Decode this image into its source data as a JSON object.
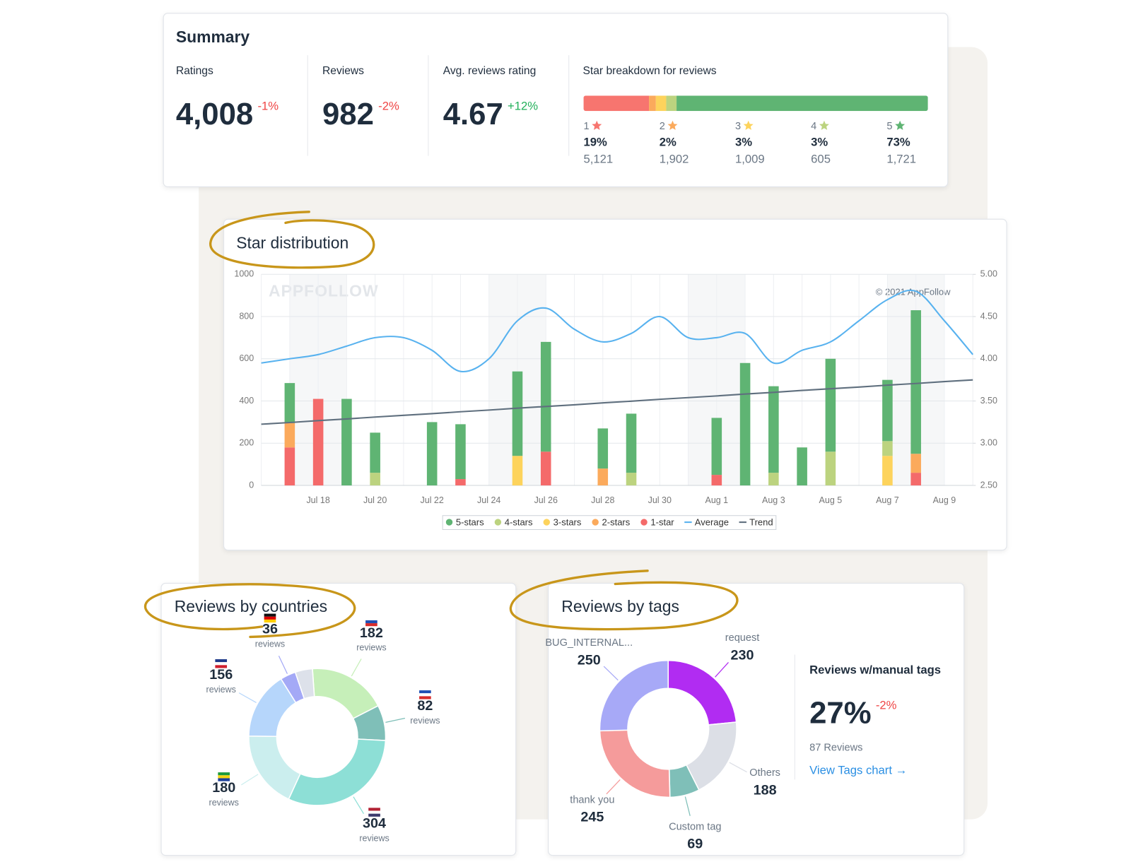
{
  "summary": {
    "title": "Summary",
    "metrics": [
      {
        "label": "Ratings",
        "value": "4,008",
        "change": "-1%"
      },
      {
        "label": "Reviews",
        "value": "982",
        "change": "-2%"
      },
      {
        "label": "Avg. reviews rating",
        "value": "4.67",
        "change": "+12%"
      }
    ],
    "star_breakdown": {
      "title": "Star breakdown for reviews",
      "levels": [
        "1",
        "2",
        "3",
        "4",
        "5"
      ],
      "colors": [
        "#f7756f",
        "#fbaa5c",
        "#fdd35c",
        "#bcd37f",
        "#5fb473"
      ],
      "values": [
        19,
        2,
        3,
        3,
        73
      ],
      "value_labels": [
        "19%",
        "2%",
        "3%",
        "3%",
        "73%"
      ],
      "counts": [
        "5,121",
        "1,902",
        "1,009",
        "605",
        "1,721"
      ]
    }
  },
  "chart_data": [
    {
      "type": "bar",
      "title": "Star distribution",
      "watermark": "APPFOLLOW",
      "copyright": "© 2021 AppFollow",
      "categories": [
        null,
        null,
        "Jul 18",
        null,
        "Jul 20",
        null,
        "Jul 22",
        null,
        "Jul 24",
        null,
        "Jul 26",
        null,
        "Jul 28",
        null,
        "Jul 30",
        null,
        "Aug 1",
        null,
        "Aug 3",
        null,
        "Aug 5",
        null,
        "Aug 7",
        null,
        "Aug 9",
        null
      ],
      "series": [
        {
          "name": "5-stars",
          "type": "bar",
          "color": "#5fb473",
          "values": [
            0,
            190,
            0,
            410,
            190,
            0,
            300,
            260,
            0,
            400,
            520,
            0,
            190,
            280,
            0,
            0,
            270,
            580,
            410,
            180,
            440,
            0,
            290,
            680,
            0,
            0
          ]
        },
        {
          "name": "4-stars",
          "type": "bar",
          "color": "#bcd37f",
          "values": [
            0,
            0,
            0,
            0,
            60,
            0,
            0,
            0,
            0,
            0,
            0,
            0,
            0,
            60,
            0,
            0,
            0,
            0,
            60,
            0,
            160,
            0,
            70,
            0,
            0,
            0
          ]
        },
        {
          "name": "3-stars",
          "type": "bar",
          "color": "#fdd35c",
          "values": [
            0,
            0,
            0,
            0,
            0,
            0,
            0,
            0,
            0,
            140,
            0,
            0,
            0,
            0,
            0,
            0,
            0,
            0,
            0,
            0,
            0,
            0,
            140,
            0,
            0,
            0
          ]
        },
        {
          "name": "2-stars",
          "type": "bar",
          "color": "#fbaa5c",
          "values": [
            0,
            115,
            0,
            0,
            0,
            0,
            0,
            0,
            0,
            0,
            0,
            0,
            80,
            0,
            0,
            0,
            0,
            0,
            0,
            0,
            0,
            0,
            0,
            90,
            0,
            0
          ]
        },
        {
          "name": "1-star",
          "type": "bar",
          "color": "#f46a6a",
          "values": [
            0,
            180,
            410,
            0,
            0,
            0,
            0,
            30,
            0,
            0,
            160,
            0,
            0,
            0,
            0,
            0,
            50,
            0,
            0,
            0,
            0,
            0,
            0,
            60,
            0,
            0
          ]
        },
        {
          "name": "Average",
          "type": "line",
          "axis": "y2",
          "color": "#58b2ef",
          "values": [
            3.95,
            4.0,
            4.05,
            4.15,
            4.25,
            4.25,
            4.1,
            3.85,
            4.0,
            4.45,
            4.6,
            4.35,
            4.2,
            4.3,
            4.5,
            4.25,
            4.25,
            4.3,
            3.95,
            4.1,
            4.2,
            4.45,
            4.7,
            4.8,
            4.45,
            4.05
          ]
        },
        {
          "name": "Trend",
          "type": "line",
          "color": "#5f6f7e",
          "values": [
            290,
            298,
            307,
            315,
            324,
            332,
            340,
            349,
            357,
            366,
            374,
            382,
            391,
            399,
            408,
            416,
            424,
            433,
            441,
            450,
            458,
            466,
            475,
            483,
            492,
            500
          ]
        }
      ],
      "ylim": [
        0,
        1000
      ],
      "yticks": [
        0,
        200,
        400,
        600,
        800,
        1000
      ],
      "y2lim": [
        2.5,
        5
      ],
      "y2ticks": [
        {
          "value": 2.5,
          "label": "2.50"
        },
        {
          "value": 3,
          "label": "3.00"
        },
        {
          "value": 3.5,
          "label": "3.50"
        },
        {
          "value": 4,
          "label": "4.00"
        },
        {
          "value": 4.5,
          "label": "4.50"
        },
        {
          "value": 5,
          "label": "5.00"
        }
      ],
      "grid": true
    },
    {
      "type": "pie",
      "title": "Reviews by countries",
      "values": [
        182,
        82,
        304,
        180,
        156,
        36,
        40
      ],
      "captions": [
        "reviews",
        "reviews",
        "reviews",
        "reviews",
        "reviews",
        "reviews",
        null
      ],
      "colors": [
        "#c6efb9",
        "#7fbfb8",
        "#8ddfd6",
        "#cbeeee",
        "#b6d6fb",
        "#a4a9f6",
        "#dde1ea"
      ]
    },
    {
      "type": "pie",
      "title": "Reviews by tags",
      "categories": [
        "request",
        "Others",
        "Custom tag",
        "thank you",
        "BUG_INTERNAL..."
      ],
      "values": [
        230,
        188,
        69,
        245,
        250
      ],
      "colors": [
        "#b12cf2",
        "#dcdfe6",
        "#7fbfb8",
        "#f59b9b",
        "#a7a9f7"
      ]
    }
  ],
  "manual_tags": {
    "title": "Reviews w/manual tags",
    "value": "27%",
    "change": "-2%",
    "caption": "87 Reviews",
    "link": "View Tags chart →"
  }
}
